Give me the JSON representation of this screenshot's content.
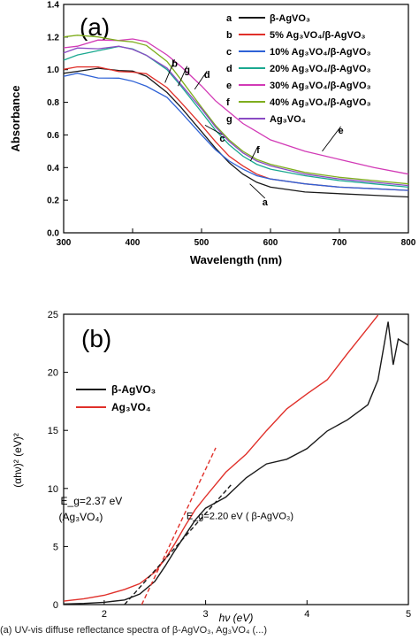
{
  "caption": "(a) UV-vis diffuse reflectance spectra of β-AgVO₃, Ag₃VO₄ (...)",
  "chart_data": [
    {
      "panel_label": "(a)",
      "type": "line",
      "xlabel": "Wavelength (nm)",
      "ylabel": "Absorbance",
      "xlim": [
        300,
        800
      ],
      "ylim": [
        0.0,
        1.4
      ],
      "xticks": [
        "300",
        "400",
        "500",
        "600",
        "700",
        "800"
      ],
      "yticks": [
        "0.0",
        "0.2",
        "0.4",
        "0.6",
        "0.8",
        "1.0",
        "1.2",
        "1.4"
      ],
      "grid": false,
      "legend_position": "top-right",
      "legend": [
        {
          "letter": "a",
          "label": "β-AgVO₃",
          "color": "#1a1a1a"
        },
        {
          "letter": "b",
          "label": "5%  Ag₃VO₄/β-AgVO₃",
          "color": "#e0302a"
        },
        {
          "letter": "c",
          "label": "10%  Ag₃VO₄/β-AgVO₃",
          "color": "#2f62d6"
        },
        {
          "letter": "d",
          "label": "20%  Ag₃VO₄/β-AgVO₃",
          "color": "#1aa890"
        },
        {
          "letter": "e",
          "label": "30%  Ag₃VO₄/β-AgVO₃",
          "color": "#d23ab6"
        },
        {
          "letter": "f",
          "label": "40%  Ag₃VO₄/β-AgVO₃",
          "color": "#7fae1e"
        },
        {
          "letter": "g",
          "label": "Ag₃VO₄",
          "color": "#8a4bc4"
        }
      ],
      "series": [
        {
          "letter": "a",
          "color": "#1a1a1a",
          "x": [
            300,
            320,
            350,
            380,
            400,
            420,
            450,
            470,
            500,
            520,
            540,
            560,
            580,
            600,
            650,
            700,
            750,
            800
          ],
          "y": [
            0.98,
            1.0,
            1.0,
            0.99,
            0.98,
            0.95,
            0.86,
            0.77,
            0.62,
            0.52,
            0.43,
            0.36,
            0.31,
            0.28,
            0.25,
            0.24,
            0.23,
            0.22
          ]
        },
        {
          "letter": "b",
          "color": "#e0302a",
          "x": [
            300,
            320,
            350,
            380,
            400,
            420,
            450,
            470,
            500,
            520,
            540,
            560,
            580,
            600,
            650,
            700,
            750,
            800
          ],
          "y": [
            0.99,
            1.01,
            1.01,
            1.0,
            0.99,
            0.97,
            0.89,
            0.8,
            0.66,
            0.56,
            0.47,
            0.41,
            0.36,
            0.33,
            0.3,
            0.28,
            0.27,
            0.26
          ]
        },
        {
          "letter": "c",
          "color": "#2f62d6",
          "x": [
            300,
            320,
            350,
            380,
            400,
            420,
            450,
            470,
            500,
            520,
            540,
            560,
            580,
            600,
            650,
            700,
            750,
            800
          ],
          "y": [
            0.96,
            0.97,
            0.96,
            0.95,
            0.94,
            0.91,
            0.83,
            0.74,
            0.6,
            0.51,
            0.44,
            0.39,
            0.35,
            0.33,
            0.3,
            0.28,
            0.27,
            0.26
          ]
        },
        {
          "letter": "d",
          "color": "#1aa890",
          "x": [
            300,
            320,
            350,
            380,
            400,
            420,
            450,
            470,
            500,
            520,
            540,
            560,
            580,
            600,
            650,
            700,
            750,
            800
          ],
          "y": [
            1.07,
            1.1,
            1.12,
            1.13,
            1.12,
            1.09,
            1.0,
            0.9,
            0.74,
            0.63,
            0.54,
            0.47,
            0.42,
            0.39,
            0.35,
            0.32,
            0.3,
            0.28
          ]
        },
        {
          "letter": "e",
          "color": "#d23ab6",
          "x": [
            300,
            320,
            350,
            380,
            400,
            420,
            450,
            470,
            500,
            520,
            540,
            560,
            580,
            600,
            650,
            700,
            750,
            800
          ],
          "y": [
            1.13,
            1.15,
            1.17,
            1.18,
            1.18,
            1.16,
            1.09,
            1.02,
            0.9,
            0.81,
            0.74,
            0.67,
            0.62,
            0.57,
            0.5,
            0.45,
            0.4,
            0.36
          ]
        },
        {
          "letter": "f",
          "color": "#7fae1e",
          "x": [
            300,
            320,
            350,
            380,
            400,
            420,
            450,
            470,
            500,
            520,
            540,
            560,
            580,
            600,
            650,
            700,
            750,
            800
          ],
          "y": [
            1.19,
            1.2,
            1.2,
            1.19,
            1.18,
            1.15,
            1.05,
            0.94,
            0.77,
            0.66,
            0.57,
            0.5,
            0.45,
            0.42,
            0.37,
            0.34,
            0.32,
            0.3
          ]
        },
        {
          "letter": "g",
          "color": "#8a4bc4",
          "x": [
            300,
            320,
            350,
            380,
            400,
            420,
            450,
            470,
            500,
            520,
            540,
            560,
            580,
            600,
            650,
            700,
            750,
            800
          ],
          "y": [
            1.11,
            1.13,
            1.14,
            1.14,
            1.13,
            1.1,
            1.01,
            0.91,
            0.76,
            0.65,
            0.56,
            0.49,
            0.44,
            0.41,
            0.36,
            0.33,
            0.31,
            0.29
          ]
        }
      ],
      "annotations": [
        {
          "text": "a",
          "x": 592,
          "y": 0.19,
          "arrow_to_x": 570,
          "arrow_to_y": 0.3
        },
        {
          "text": "b",
          "x": 461,
          "y": 1.04,
          "arrow_to_x": 447,
          "arrow_to_y": 0.92
        },
        {
          "text": "c",
          "x": 530,
          "y": 0.58,
          "arrow_to_x": 505,
          "arrow_to_y": 0.66
        },
        {
          "text": "d",
          "x": 508,
          "y": 0.97,
          "arrow_to_x": 490,
          "arrow_to_y": 0.88
        },
        {
          "text": "e",
          "x": 702,
          "y": 0.63,
          "arrow_to_x": 675,
          "arrow_to_y": 0.5
        },
        {
          "text": "f",
          "x": 582,
          "y": 0.51,
          "arrow_to_x": 571,
          "arrow_to_y": 0.44
        },
        {
          "text": "g",
          "x": 479,
          "y": 1.0,
          "arrow_to_x": 466,
          "arrow_to_y": 0.9
        }
      ]
    },
    {
      "panel_label": "(b)",
      "type": "line",
      "xlabel": "hν (eV)",
      "ylabel": "(αhν)² (eV)²",
      "xlim": [
        1.6,
        5.0
      ],
      "ylim": [
        0,
        25
      ],
      "xticks": [
        "2",
        "3",
        "4",
        "5"
      ],
      "yticks": [
        "0",
        "5",
        "10",
        "15",
        "20",
        "25"
      ],
      "grid": false,
      "legend_position": "center-left",
      "legend": [
        {
          "label": "β-AgVO₃",
          "color": "#1a1a1a"
        },
        {
          "label": "Ag₃VO₄",
          "color": "#e0302a"
        }
      ],
      "series": [
        {
          "name": "β-AgVO₃",
          "color": "#1a1a1a",
          "x": [
            1.6,
            1.8,
            2.0,
            2.2,
            2.35,
            2.5,
            2.6,
            2.7,
            2.8,
            2.9,
            3.0,
            3.2,
            3.4,
            3.6,
            3.8,
            4.0,
            4.2,
            4.4,
            4.6,
            4.7,
            4.8,
            4.85,
            4.9,
            5.0
          ],
          "y": [
            0.05,
            0.1,
            0.2,
            0.4,
            0.9,
            2.0,
            3.3,
            4.7,
            6.0,
            7.3,
            8.3,
            9.6,
            10.8,
            11.8,
            12.7,
            13.7,
            14.7,
            15.7,
            17.5,
            19.0,
            24.5,
            21.0,
            23.0,
            22.0
          ]
        },
        {
          "name": "Ag₃VO₄",
          "color": "#e0302a",
          "x": [
            1.6,
            1.8,
            2.0,
            2.2,
            2.35,
            2.5,
            2.6,
            2.7,
            2.8,
            2.9,
            3.0,
            3.2,
            3.4,
            3.6,
            3.8,
            4.0,
            4.2,
            4.4,
            4.6,
            4.7
          ],
          "y": [
            0.3,
            0.5,
            0.8,
            1.3,
            1.8,
            2.8,
            3.9,
            5.3,
            6.8,
            8.2,
            9.3,
            11.3,
            13.3,
            15.0,
            16.5,
            18.2,
            19.7,
            21.5,
            23.5,
            25.0
          ]
        }
      ],
      "fit_lines": [
        {
          "color": "#e0302a",
          "style": "dashed",
          "x": [
            2.37,
            3.1
          ],
          "y": [
            0,
            13.5
          ]
        },
        {
          "color": "#1a1a1a",
          "style": "dashed",
          "x": [
            2.2,
            3.25
          ],
          "y": [
            0,
            10.3
          ]
        }
      ],
      "annotations": [
        {
          "text": "E_g=2.37 eV",
          "text2": "(Ag₃VO₄)",
          "x": 2.25,
          "y": 8.0
        },
        {
          "text": "E_g=2.20 eV ( β-AgVO₃)",
          "x": 2.95,
          "y": 7.8
        }
      ]
    }
  ]
}
